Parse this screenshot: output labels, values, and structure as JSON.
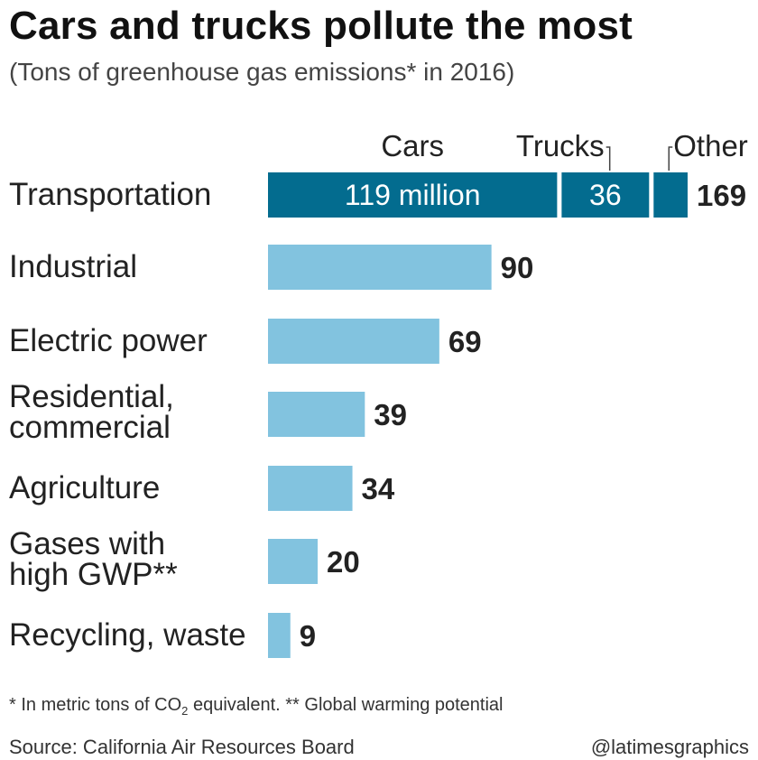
{
  "title": "Cars and trucks pollute the most",
  "subtitle": "(Tons of greenhouse gas emissions* in 2016)",
  "footnote": {
    "prefix": "* In metric tons of CO",
    "subscript": "2",
    "suffix": " equivalent.  ** Global warming potential"
  },
  "source": "Source: California Air Resources Board",
  "credit": "@latimesgraphics",
  "colors": {
    "dark_bar": "#036c8f",
    "light_bar": "#82c3df",
    "text": "#222222",
    "leader_line": "#444444"
  },
  "chart_data": {
    "type": "bar",
    "orientation": "horizontal",
    "unit": "million tons",
    "categories": [
      [
        "Transportation"
      ],
      [
        "Industrial"
      ],
      [
        "Electric power"
      ],
      [
        "Residential,",
        "commercial"
      ],
      [
        "Agriculture"
      ],
      [
        "Gases with",
        "high GWP**"
      ],
      [
        "Recycling, waste"
      ]
    ],
    "values": [
      169,
      90,
      69,
      39,
      34,
      20,
      9
    ],
    "value_labels": [
      "169",
      "90",
      "69",
      "39",
      "34",
      "20",
      "9"
    ],
    "transportation_breakdown": {
      "segments": [
        {
          "name": "Cars",
          "value": 119,
          "label": "119 million"
        },
        {
          "name": "Trucks",
          "value": 36,
          "label": "36"
        },
        {
          "name": "Other",
          "value": 14,
          "label": ""
        }
      ]
    },
    "xlim": [
      0,
      169
    ],
    "grid": false,
    "legend": "inline above the Transportation bar"
  }
}
